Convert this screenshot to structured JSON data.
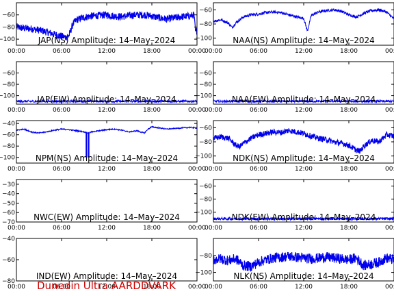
{
  "footer_text": "Dunedin Ultra AARDDVARK",
  "colors": {
    "trace": "#0000ee",
    "footer": "#cc0000"
  },
  "chart_data": [
    {
      "id": "jap-ns",
      "type": "line",
      "title": "JAP(NS) Amplitude: 14–May–2024",
      "x_ticks": [
        "00:00",
        "06:00",
        "12:00",
        "18:00",
        "00:00"
      ],
      "xlim": [
        0,
        24
      ],
      "ylim": [
        -110,
        -40
      ],
      "y_ticks": [
        -100,
        -80,
        -60
      ],
      "series": [
        {
          "x": [
            0,
            1,
            2,
            3,
            4,
            5,
            6,
            6.5,
            7,
            7.5,
            8,
            9,
            10,
            11,
            12,
            13,
            14,
            15,
            16,
            17,
            18,
            19,
            20,
            21,
            22,
            23,
            23.6,
            23.8,
            24
          ],
          "y": [
            -80,
            -82,
            -83,
            -85,
            -88,
            -92,
            -95,
            -97,
            -94,
            -75,
            -68,
            -64,
            -62,
            -61,
            -60,
            -62,
            -63,
            -61,
            -60,
            -60,
            -62,
            -65,
            -67,
            -65,
            -63,
            -62,
            -60,
            -88,
            -85
          ],
          "noise": 6
        }
      ]
    },
    {
      "id": "naa-ns",
      "type": "line",
      "title": "NAA(NS) Amplitude: 14–May–2024",
      "x_ticks": [
        "00:00",
        "06:00",
        "12:00",
        "18:00",
        "00:00"
      ],
      "xlim": [
        0,
        24
      ],
      "ylim": [
        -110,
        -50
      ],
      "y_ticks": [
        -100,
        -80,
        -60
      ],
      "series": [
        {
          "x": [
            0,
            1,
            2,
            2.5,
            3,
            4,
            5,
            6,
            7,
            8,
            9,
            10,
            11,
            12,
            12.5,
            13,
            14,
            15,
            16,
            17,
            18,
            19,
            20,
            21,
            22,
            23,
            24
          ],
          "y": [
            -76,
            -74,
            -79,
            -85,
            -78,
            -70,
            -67,
            -66,
            -64,
            -63,
            -64,
            -67,
            -70,
            -72,
            -90,
            -68,
            -63,
            -61,
            -60,
            -62,
            -67,
            -70,
            -65,
            -61,
            -60,
            -63,
            -73
          ],
          "noise": 2
        }
      ]
    },
    {
      "id": "jap-ew",
      "type": "line",
      "title": "JAP(EW) Amplitude: 14–May–2024",
      "x_ticks": [
        "00:00",
        "06:00",
        "12:00",
        "18:00",
        "00:00"
      ],
      "xlim": [
        0,
        24
      ],
      "ylim": [
        -115,
        -40
      ],
      "y_ticks": [
        -100,
        -80,
        -60
      ],
      "series": [
        {
          "x": [
            0,
            24
          ],
          "y": [
            -110,
            -110
          ],
          "noise": 2
        }
      ]
    },
    {
      "id": "naa-ew",
      "type": "line",
      "title": "NAA(EW) Amplitude: 14–May–2024",
      "x_ticks": [
        "00:00",
        "06:00",
        "12:00",
        "18:00",
        "00:00"
      ],
      "xlim": [
        0,
        24
      ],
      "ylim": [
        -115,
        -40
      ],
      "y_ticks": [
        -100,
        -80,
        -60
      ],
      "series": [
        {
          "x": [
            0,
            24
          ],
          "y": [
            -110,
            -110
          ],
          "noise": 2
        }
      ]
    },
    {
      "id": "npm-ns",
      "type": "line",
      "title": "NPM(NS) Amplitude: 14–May–2024",
      "x_ticks": [
        "00:00",
        "06:00",
        "12:00",
        "18:00",
        "00:00"
      ],
      "xlim": [
        0,
        24
      ],
      "ylim": [
        -110,
        -35
      ],
      "y_ticks": [
        -100,
        -80,
        -60,
        -40
      ],
      "series": [
        {
          "x": [
            0,
            1,
            2,
            3,
            4,
            5,
            6,
            7,
            8,
            9,
            9.5,
            10,
            11,
            12,
            13,
            14,
            15,
            16,
            17,
            17.5,
            18,
            19,
            20,
            21,
            22,
            23,
            24
          ],
          "y": [
            -52,
            -50,
            -55,
            -57,
            -55,
            -52,
            -50,
            -51,
            -53,
            -55,
            -57,
            -55,
            -53,
            -51,
            -50,
            -52,
            -55,
            -53,
            -57,
            -50,
            -46,
            -48,
            -50,
            -49,
            -48,
            -47,
            -48
          ],
          "noise": 1,
          "drops": [
            {
              "x": 9.3,
              "y": -100
            },
            {
              "x": 9.6,
              "y": -100
            }
          ]
        }
      ]
    },
    {
      "id": "ndk-ns",
      "type": "line",
      "title": "NDK(NS) Amplitude: 14–May–2024",
      "x_ticks": [
        "00:00",
        "06:00",
        "12:00",
        "18:00",
        "00:00"
      ],
      "xlim": [
        0,
        24
      ],
      "ylim": [
        -110,
        -50
      ],
      "y_ticks": [
        -100,
        -80,
        -60
      ],
      "series": [
        {
          "x": [
            0,
            1,
            2,
            3,
            3.5,
            4,
            5,
            6,
            7,
            8,
            9,
            10,
            11,
            12,
            13,
            14,
            15,
            16,
            17,
            18,
            19,
            19.5,
            20,
            21,
            22,
            23,
            24
          ],
          "y": [
            -75,
            -73,
            -75,
            -85,
            -87,
            -82,
            -75,
            -70,
            -68,
            -66,
            -67,
            -64,
            -66,
            -68,
            -72,
            -75,
            -77,
            -80,
            -82,
            -85,
            -92,
            -93,
            -86,
            -78,
            -80,
            -70,
            -72
          ],
          "noise": 4
        }
      ]
    },
    {
      "id": "nwc-ew",
      "type": "line",
      "title": "NWC(EW) Amplitude: 14–May–2024",
      "x_ticks": [
        "00:00",
        "06:00",
        "12:00",
        "18:00",
        "00:00"
      ],
      "xlim": [
        0,
        24
      ],
      "ylim": [
        -70,
        -25
      ],
      "y_ticks": [
        -70,
        -60,
        -50,
        -40,
        -30
      ],
      "series": []
    },
    {
      "id": "ndk-ew",
      "type": "line",
      "title": "NDK(EW) Amplitude: 14–May–2024",
      "x_ticks": [
        "00:00",
        "06:00",
        "12:00",
        "18:00",
        "00:00"
      ],
      "xlim": [
        0,
        24
      ],
      "ylim": [
        -115,
        -50
      ],
      "y_ticks": [
        -100,
        -80,
        -60
      ],
      "series": [
        {
          "x": [
            0,
            24
          ],
          "y": [
            -110,
            -110
          ],
          "noise": 2
        }
      ]
    },
    {
      "id": "ind-ew",
      "type": "line",
      "title": "IND(EW) Amplitude: 14–May–2024",
      "x_ticks": [
        "00:00",
        "06:00",
        "12:00",
        "18:00",
        "00:00"
      ],
      "xlim": [
        0,
        24
      ],
      "ylim": [
        -80,
        -40
      ],
      "y_ticks": [
        -80,
        -60,
        -40
      ],
      "series": []
    },
    {
      "id": "nlk-ns",
      "type": "line",
      "title": "NLK(NS) Amplitude: 14–May–2024",
      "x_ticks": [
        "00:00",
        "06:00",
        "12:00",
        "18:00",
        "00:00"
      ],
      "xlim": [
        0,
        24
      ],
      "ylim": [
        -110,
        -60
      ],
      "y_ticks": [
        -100,
        -80
      ],
      "series": [
        {
          "x": [
            0,
            1,
            2,
            3,
            4,
            5,
            6,
            7,
            8,
            9,
            10,
            11,
            12,
            13,
            14,
            15,
            16,
            17,
            18,
            19,
            20,
            21,
            22,
            23,
            24
          ],
          "y": [
            -85,
            -84,
            -86,
            -84,
            -92,
            -93,
            -88,
            -85,
            -83,
            -82,
            -81,
            -82,
            -83,
            -84,
            -83,
            -82,
            -83,
            -84,
            -85,
            -83,
            -92,
            -90,
            -88,
            -83,
            -85
          ],
          "noise": 6
        }
      ]
    }
  ]
}
